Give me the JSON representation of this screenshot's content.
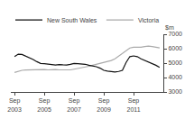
{
  "chart_data": {
    "type": "line",
    "ylabel": "$m",
    "categories": [
      "Sep\n2003",
      null,
      null,
      null,
      null,
      null,
      null,
      null,
      "Sep\n2005",
      null,
      null,
      null,
      null,
      null,
      null,
      null,
      "Sep\n2007",
      null,
      null,
      null,
      null,
      null,
      null,
      null,
      "Sep\n2009",
      null,
      null,
      null,
      null,
      null,
      null,
      null,
      "Sep\n2011",
      null,
      null,
      null,
      null,
      null,
      null,
      null
    ],
    "series": [
      {
        "name": "Victoria",
        "color": "#aaaaaa",
        "values": [
          4350,
          4430,
          4500,
          4520,
          4530,
          4530,
          4540,
          4520,
          4550,
          4530,
          4550,
          4560,
          4530,
          4520,
          4500,
          4530,
          4580,
          4620,
          4680,
          4720,
          4780,
          4850,
          4920,
          4980,
          5050,
          5100,
          5180,
          5300,
          5500,
          5700,
          5900,
          6050,
          6100,
          6080,
          6100,
          6150,
          6180,
          6150,
          6100,
          6050
        ]
      },
      {
        "name": "New South Wales",
        "color": "#111111",
        "values": [
          5450,
          5620,
          5600,
          5500,
          5380,
          5250,
          5100,
          4980,
          4960,
          4950,
          4900,
          4870,
          4900,
          4880,
          4870,
          4910,
          4980,
          4960,
          4940,
          4920,
          4850,
          4800,
          4750,
          4650,
          4500,
          4450,
          4400,
          4380,
          4420,
          4500,
          5050,
          5450,
          5500,
          5450,
          5300,
          5200,
          5100,
          5000,
          4850,
          4700
        ]
      }
    ],
    "ylim": [
      3000,
      7000
    ],
    "yticks": [
      3000,
      4000,
      5000,
      6000,
      7000
    ],
    "grid": false,
    "legend": "top"
  }
}
